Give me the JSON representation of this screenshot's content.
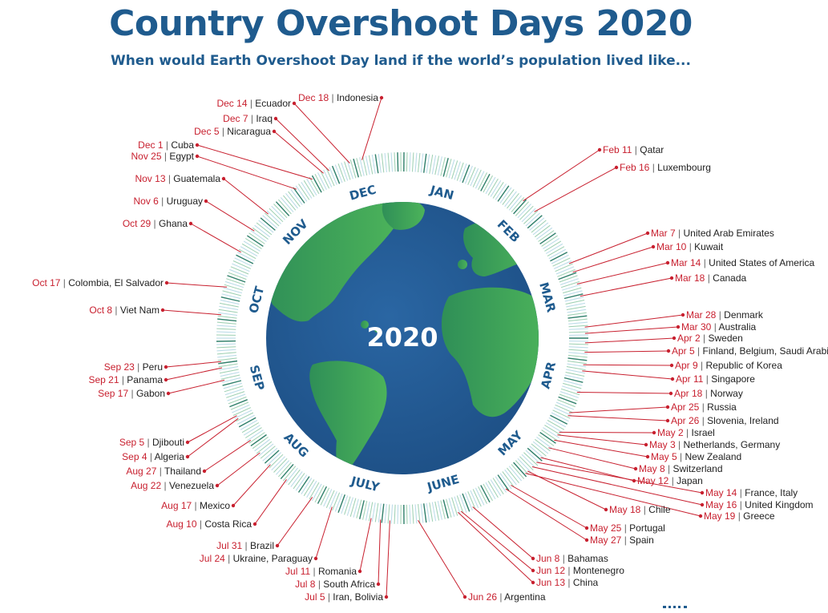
{
  "header": {
    "title": "Country Overshoot Days 2020",
    "subtitle": "When would Earth Overshoot Day land if the world’s population lived like..."
  },
  "center_label": "2020",
  "months": [
    "JAN",
    "FEB",
    "MAR",
    "APR",
    "MAY",
    "JUNE",
    "JULY",
    "AUG",
    "SEP",
    "OCT",
    "NOV",
    "DEC"
  ],
  "colors": {
    "title": "#1f5b8e",
    "date": "#c8202f",
    "country": "#222222",
    "ocean": "#22578f",
    "land": "#3fa557",
    "month_label": "#1f5b8e"
  },
  "countries": [
    {
      "date": "Feb 11",
      "country": "Qatar",
      "day": 42
    },
    {
      "date": "Feb 16",
      "country": "Luxembourg",
      "day": 47
    },
    {
      "date": "Mar 7",
      "country": "United Arab Emirates",
      "day": 67
    },
    {
      "date": "Mar 10",
      "country": "Kuwait",
      "day": 70
    },
    {
      "date": "Mar 14",
      "country": "United States of America",
      "day": 74
    },
    {
      "date": "Mar 18",
      "country": "Canada",
      "day": 78
    },
    {
      "date": "Mar 28",
      "country": "Denmark",
      "day": 88
    },
    {
      "date": "Mar 30",
      "country": "Australia",
      "day": 90
    },
    {
      "date": "Apr 2",
      "country": "Sweden",
      "day": 93
    },
    {
      "date": "Apr 5",
      "country": "Finland, Belgium, Saudi Arabia",
      "day": 96
    },
    {
      "date": "Apr 9",
      "country": "Republic of Korea",
      "day": 100
    },
    {
      "date": "Apr 11",
      "country": "Singapore",
      "day": 102
    },
    {
      "date": "Apr 18",
      "country": "Norway",
      "day": 109
    },
    {
      "date": "Apr 25",
      "country": "Russia",
      "day": 116
    },
    {
      "date": "Apr 26",
      "country": "Slovenia, Ireland",
      "day": 117
    },
    {
      "date": "May 2",
      "country": "Israel",
      "day": 123
    },
    {
      "date": "May 3",
      "country": "Netherlands, Germany",
      "day": 124
    },
    {
      "date": "May 5",
      "country": "New Zealand",
      "day": 126
    },
    {
      "date": "May 8",
      "country": "Switzerland",
      "day": 129
    },
    {
      "date": "May 12",
      "country": "Japan",
      "day": 133
    },
    {
      "date": "May 14",
      "country": "France, Italy",
      "day": 135
    },
    {
      "date": "May 16",
      "country": "United Kingdom",
      "day": 137
    },
    {
      "date": "May 18",
      "country": "Chile",
      "day": 139
    },
    {
      "date": "May 19",
      "country": "Greece",
      "day": 140
    },
    {
      "date": "May 25",
      "country": "Portugal",
      "day": 146
    },
    {
      "date": "May 27",
      "country": "Spain",
      "day": 148
    },
    {
      "date": "Jun 8",
      "country": "Bahamas",
      "day": 160
    },
    {
      "date": "Jun 12",
      "country": "Montenegro",
      "day": 164
    },
    {
      "date": "Jun 13",
      "country": "China",
      "day": 165
    },
    {
      "date": "Jun 26",
      "country": "Argentina",
      "day": 178
    },
    {
      "date": "Jul 5",
      "country": "Iran, Bolivia",
      "day": 187
    },
    {
      "date": "Jul 8",
      "country": "South Africa",
      "day": 190
    },
    {
      "date": "Jul 11",
      "country": "Romania",
      "day": 193
    },
    {
      "date": "Jul 24",
      "country": "Ukraine, Paraguay",
      "day": 206
    },
    {
      "date": "Jul 31",
      "country": "Brazil",
      "day": 213
    },
    {
      "date": "Aug 10",
      "country": "Costa Rica",
      "day": 223
    },
    {
      "date": "Aug 17",
      "country": "Mexico",
      "day": 230
    },
    {
      "date": "Aug 22",
      "country": "Venezuela",
      "day": 235
    },
    {
      "date": "Aug 27",
      "country": "Thailand",
      "day": 240
    },
    {
      "date": "Sep 4",
      "country": "Algeria",
      "day": 248
    },
    {
      "date": "Sep 5",
      "country": "Djibouti",
      "day": 249
    },
    {
      "date": "Sep 17",
      "country": "Gabon",
      "day": 261
    },
    {
      "date": "Sep 21",
      "country": "Panama",
      "day": 265
    },
    {
      "date": "Sep 23",
      "country": "Peru",
      "day": 267
    },
    {
      "date": "Oct 8",
      "country": "Viet Nam",
      "day": 282
    },
    {
      "date": "Oct 17",
      "country": "Colombia, El Salvador",
      "day": 291
    },
    {
      "date": "Oct 29",
      "country": "Ghana",
      "day": 303
    },
    {
      "date": "Nov 6",
      "country": "Uruguay",
      "day": 311
    },
    {
      "date": "Nov 13",
      "country": "Guatemala",
      "day": 318
    },
    {
      "date": "Nov 25",
      "country": "Egypt",
      "day": 330
    },
    {
      "date": "Dec 1",
      "country": "Cuba",
      "day": 336
    },
    {
      "date": "Dec 5",
      "country": "Nicaragua",
      "day": 340
    },
    {
      "date": "Dec 7",
      "country": "Iraq",
      "day": 342
    },
    {
      "date": "Dec 14",
      "country": "Ecuador",
      "day": 349
    },
    {
      "date": "Dec 18",
      "country": "Indonesia",
      "day": 353
    }
  ]
}
